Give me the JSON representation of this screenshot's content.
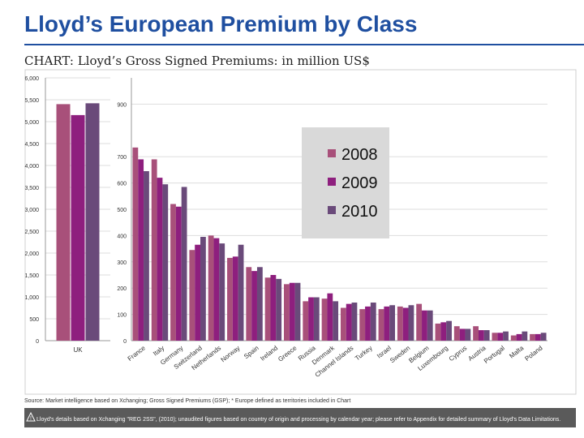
{
  "header": {
    "title": "Lloyd’s European Premium by Class",
    "subtitle": "CHART: Lloyd’s Gross Signed Premiums: in million US$"
  },
  "colors": {
    "accent": "#1f4fa0",
    "s2008": "#a8507a",
    "s2009": "#8e1f7e",
    "s2010": "#6a4a7a"
  },
  "chart_data": [
    {
      "type": "bar",
      "categories": [
        "UK"
      ],
      "series": [
        {
          "name": "2008",
          "values": [
            5400
          ]
        },
        {
          "name": "2009",
          "values": [
            5150
          ]
        },
        {
          "name": "2010",
          "values": [
            5420
          ]
        }
      ],
      "ylim": [
        0,
        6000
      ],
      "yticks": [
        "0",
        "500",
        "1,000",
        "1,500",
        "2,000",
        "2,500",
        "3,000",
        "3,500",
        "4,000",
        "4,500",
        "5,000",
        "5,500",
        "6,000"
      ]
    },
    {
      "type": "bar",
      "categories": [
        "France",
        "Italy",
        "Germany",
        "Switzerland",
        "Netherlands",
        "Norway",
        "Spain",
        "Ireland",
        "Greece",
        "Russia",
        "Denmark",
        "Channel Islands",
        "Turkey",
        "Israel",
        "Sweden",
        "Belgium",
        "Luxembourg",
        "Cyprus",
        "Austria",
        "Portugal",
        "Malta",
        "Poland"
      ],
      "series": [
        {
          "name": "2008",
          "values": [
            735,
            690,
            520,
            345,
            400,
            315,
            280,
            240,
            215,
            150,
            160,
            125,
            120,
            120,
            130,
            140,
            65,
            55,
            55,
            30,
            20,
            25
          ]
        },
        {
          "name": "2009",
          "values": [
            690,
            620,
            510,
            365,
            390,
            320,
            265,
            250,
            220,
            165,
            180,
            140,
            130,
            130,
            125,
            115,
            70,
            45,
            40,
            30,
            25,
            25
          ]
        },
        {
          "name": "2010",
          "values": [
            645,
            595,
            585,
            395,
            370,
            365,
            280,
            235,
            220,
            165,
            150,
            145,
            145,
            135,
            135,
            115,
            75,
            45,
            40,
            35,
            35,
            30
          ]
        }
      ],
      "ylim": [
        0,
        1000
      ],
      "yticks": [
        "0",
        "100",
        "200",
        "300",
        "400",
        "500",
        "600",
        "700",
        "900"
      ]
    }
  ],
  "footer": {
    "source": "Source: Market intelligence based on Xchanging; Gross Signed Premiums (GSP); * Europe defined as territories included in Chart",
    "note": "Lloyd's details based on Xchanging \"REG 2SS\", (2010); unaudited figures based on country of origin and processing by calendar year; please refer to Appendix for detailed summary of Lloyd's Data Limitations."
  }
}
